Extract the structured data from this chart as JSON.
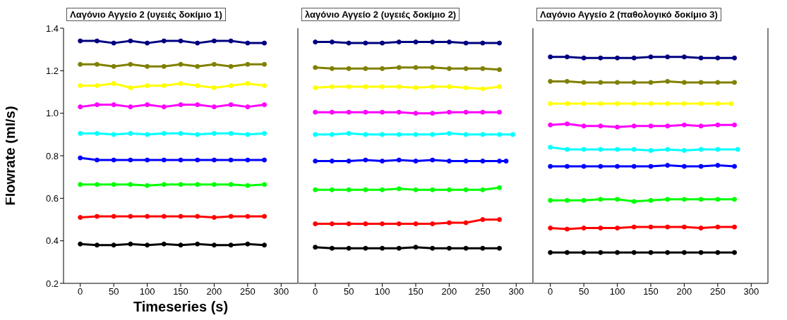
{
  "chart_data": [
    {
      "type": "line",
      "title": "Λαγόνιο Αγγείο 2 (υγειές δοκίμιο 1)",
      "xlabel": "Timeseries (s)",
      "ylabel": "Flowrate (ml/s)",
      "xlim": [
        -25,
        325
      ],
      "xticks": [
        0,
        50,
        100,
        150,
        200,
        250,
        300
      ],
      "ylim": [
        0.2,
        1.4
      ],
      "yticks": [
        0.2,
        0.4,
        0.6,
        0.8,
        {
          "value": 1.0,
          "label": "1.0"
        },
        1.2,
        1.4
      ],
      "marker": "circle",
      "line_style": "solid",
      "x": [
        0,
        25,
        50,
        75,
        100,
        125,
        150,
        175,
        200,
        225,
        250,
        275
      ],
      "series": [
        {
          "color": "#000080",
          "values": [
            1.34,
            1.34,
            1.33,
            1.34,
            1.33,
            1.34,
            1.34,
            1.33,
            1.34,
            1.34,
            1.33,
            1.33
          ]
        },
        {
          "color": "#808000",
          "values": [
            1.23,
            1.23,
            1.22,
            1.23,
            1.22,
            1.22,
            1.23,
            1.22,
            1.23,
            1.22,
            1.23,
            1.23
          ]
        },
        {
          "color": "#ffff00",
          "values": [
            1.13,
            1.13,
            1.14,
            1.12,
            1.13,
            1.13,
            1.14,
            1.13,
            1.12,
            1.13,
            1.14,
            1.13
          ]
        },
        {
          "color": "#ff00ff",
          "values": [
            1.03,
            1.04,
            1.04,
            1.03,
            1.04,
            1.03,
            1.04,
            1.04,
            1.03,
            1.04,
            1.03,
            1.04
          ]
        },
        {
          "color": "#00ffff",
          "values": [
            0.905,
            0.905,
            0.9,
            0.905,
            0.9,
            0.905,
            0.905,
            0.9,
            0.905,
            0.905,
            0.9,
            0.905
          ]
        },
        {
          "color": "#0000ff",
          "values": [
            0.79,
            0.78,
            0.78,
            0.78,
            0.78,
            0.78,
            0.78,
            0.78,
            0.78,
            0.78,
            0.78,
            0.78
          ]
        },
        {
          "color": "#00ff00",
          "values": [
            0.665,
            0.665,
            0.665,
            0.665,
            0.66,
            0.665,
            0.665,
            0.665,
            0.665,
            0.665,
            0.66,
            0.665
          ]
        },
        {
          "color": "#ff0000",
          "values": [
            0.51,
            0.515,
            0.515,
            0.515,
            0.515,
            0.515,
            0.515,
            0.515,
            0.51,
            0.515,
            0.515,
            0.515
          ]
        },
        {
          "color": "#000000",
          "values": [
            0.385,
            0.38,
            0.38,
            0.385,
            0.38,
            0.385,
            0.38,
            0.385,
            0.38,
            0.38,
            0.385,
            0.38
          ]
        }
      ]
    },
    {
      "type": "line",
      "title": "λαγόνιο Αγγείο 2 (υγειές δοκίμιο 2)",
      "xlim": [
        -25,
        325
      ],
      "xticks": [
        0,
        50,
        100,
        150,
        200,
        250,
        300
      ],
      "ylim": [
        0.2,
        1.4
      ],
      "yticks": [
        0.2,
        0.4,
        0.6,
        0.8,
        1.0,
        1.2,
        1.4
      ],
      "tick_labels": "x",
      "marker": "circle",
      "line_style": "solid",
      "x": [
        0,
        25,
        50,
        75,
        100,
        125,
        150,
        175,
        200,
        225,
        250,
        275
      ],
      "series": [
        {
          "color": "#000080",
          "values": [
            1.335,
            1.335,
            1.33,
            1.33,
            1.33,
            1.335,
            1.335,
            1.335,
            1.335,
            1.33,
            1.33,
            1.33
          ]
        },
        {
          "color": "#808000",
          "values": [
            1.215,
            1.21,
            1.21,
            1.21,
            1.21,
            1.215,
            1.215,
            1.215,
            1.21,
            1.21,
            1.21,
            1.205
          ]
        },
        {
          "color": "#ffff00",
          "values": [
            1.12,
            1.125,
            1.125,
            1.125,
            1.125,
            1.125,
            1.12,
            1.125,
            1.125,
            1.12,
            1.115,
            1.125
          ]
        },
        {
          "color": "#ff00ff",
          "values": [
            1.005,
            1.005,
            1.005,
            1.005,
            1.005,
            1.005,
            1.0,
            1.0,
            1.005,
            1.005,
            1.005,
            1.005
          ]
        },
        {
          "color": "#00ffff",
          "x": [
            0,
            25,
            50,
            75,
            100,
            125,
            150,
            175,
            200,
            225,
            250,
            275,
            295
          ],
          "values": [
            0.9,
            0.9,
            0.905,
            0.9,
            0.9,
            0.9,
            0.9,
            0.9,
            0.905,
            0.9,
            0.9,
            0.9,
            0.9
          ]
        },
        {
          "color": "#0000ff",
          "x": [
            0,
            25,
            50,
            75,
            100,
            125,
            150,
            175,
            200,
            225,
            250,
            275,
            285
          ],
          "values": [
            0.775,
            0.775,
            0.775,
            0.78,
            0.775,
            0.78,
            0.775,
            0.78,
            0.775,
            0.775,
            0.775,
            0.775,
            0.775
          ]
        },
        {
          "color": "#00ff00",
          "values": [
            0.64,
            0.64,
            0.64,
            0.64,
            0.64,
            0.645,
            0.64,
            0.64,
            0.64,
            0.64,
            0.64,
            0.65
          ]
        },
        {
          "color": "#ff0000",
          "values": [
            0.48,
            0.48,
            0.48,
            0.48,
            0.48,
            0.48,
            0.48,
            0.48,
            0.485,
            0.485,
            0.5,
            0.5
          ]
        },
        {
          "color": "#000000",
          "values": [
            0.37,
            0.365,
            0.365,
            0.365,
            0.365,
            0.365,
            0.37,
            0.365,
            0.365,
            0.365,
            0.365,
            0.365
          ]
        }
      ]
    },
    {
      "type": "line",
      "title": "Λαγόνιο Αγγείο 2 (παθολογικό δοκίμιο 3)",
      "xlim": [
        -25,
        325
      ],
      "xticks": [
        0,
        50,
        100,
        150,
        200,
        250,
        300
      ],
      "ylim": [
        0.2,
        1.4
      ],
      "yticks": [
        0.2,
        0.4,
        0.6,
        0.8,
        1.0,
        1.2,
        1.4
      ],
      "tick_labels": "x",
      "marker": "circle",
      "line_style": "solid",
      "x": [
        0,
        25,
        50,
        75,
        100,
        125,
        150,
        175,
        200,
        225,
        250,
        275
      ],
      "series": [
        {
          "color": "#000080",
          "values": [
            1.265,
            1.265,
            1.26,
            1.26,
            1.26,
            1.26,
            1.265,
            1.265,
            1.265,
            1.26,
            1.26,
            1.26
          ]
        },
        {
          "color": "#808000",
          "values": [
            1.15,
            1.15,
            1.145,
            1.145,
            1.145,
            1.145,
            1.145,
            1.15,
            1.145,
            1.145,
            1.145,
            1.145
          ]
        },
        {
          "color": "#ffff00",
          "x": [
            0,
            25,
            50,
            75,
            100,
            125,
            150,
            175,
            200,
            225,
            250,
            270
          ],
          "values": [
            1.045,
            1.045,
            1.045,
            1.045,
            1.045,
            1.045,
            1.045,
            1.045,
            1.045,
            1.045,
            1.045,
            1.045
          ]
        },
        {
          "color": "#ff00ff",
          "values": [
            0.945,
            0.95,
            0.94,
            0.94,
            0.935,
            0.94,
            0.94,
            0.94,
            0.945,
            0.94,
            0.945,
            0.945
          ]
        },
        {
          "color": "#00ffff",
          "x": [
            0,
            25,
            50,
            75,
            100,
            125,
            150,
            175,
            200,
            225,
            250,
            280
          ],
          "values": [
            0.84,
            0.83,
            0.83,
            0.83,
            0.83,
            0.83,
            0.825,
            0.83,
            0.825,
            0.83,
            0.83,
            0.83
          ]
        },
        {
          "color": "#0000ff",
          "values": [
            0.75,
            0.75,
            0.75,
            0.75,
            0.75,
            0.75,
            0.75,
            0.755,
            0.75,
            0.75,
            0.755,
            0.75
          ]
        },
        {
          "color": "#00ff00",
          "values": [
            0.59,
            0.59,
            0.59,
            0.595,
            0.595,
            0.585,
            0.59,
            0.595,
            0.595,
            0.595,
            0.595,
            0.595
          ]
        },
        {
          "color": "#ff0000",
          "values": [
            0.46,
            0.455,
            0.46,
            0.46,
            0.46,
            0.465,
            0.465,
            0.465,
            0.465,
            0.46,
            0.465,
            0.465
          ]
        },
        {
          "color": "#000000",
          "values": [
            0.345,
            0.345,
            0.345,
            0.345,
            0.345,
            0.345,
            0.345,
            0.345,
            0.345,
            0.345,
            0.345,
            0.345
          ]
        }
      ]
    }
  ]
}
